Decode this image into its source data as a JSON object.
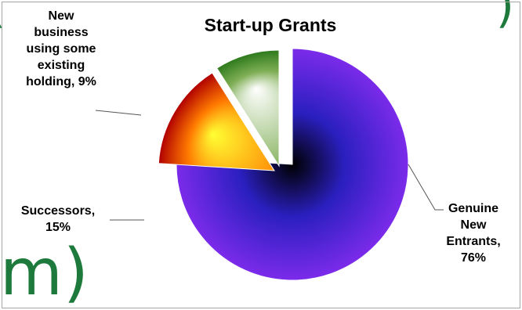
{
  "backdrop": {
    "left_glyph": "(",
    "right_glyph": ")",
    "bottom_text": "m)"
  },
  "colors": {
    "frame": "#a6a6a6",
    "backdrop_text": "#1e7a3c",
    "leader_line": "#555555"
  },
  "chart_data": {
    "type": "pie",
    "title": "Start-up Grants",
    "start_angle_deg": 90,
    "direction": "clockwise",
    "legend": "none",
    "slices": [
      {
        "label": "Genuine New Entrants",
        "value": 76,
        "display_lines": [
          "Genuine",
          "New",
          "Entrants,",
          "76%"
        ],
        "gradient": "blue-purple",
        "colors": [
          "#000000",
          "#2a1fbf",
          "#7b2bea"
        ]
      },
      {
        "label": "Successors",
        "value": 15,
        "display_lines": [
          "Successors,",
          "15%"
        ],
        "gradient": "red-yellow",
        "colors": [
          "#ffff33",
          "#ff7a00",
          "#b00000"
        ]
      },
      {
        "label": "New business using some existing holding",
        "value": 9,
        "display_lines": [
          "New",
          "business",
          "using some",
          "existing",
          "holding, 9%"
        ],
        "gradient": "green-white",
        "colors": [
          "#ffffff",
          "#7fae55",
          "#2d7a1c"
        ]
      }
    ]
  }
}
